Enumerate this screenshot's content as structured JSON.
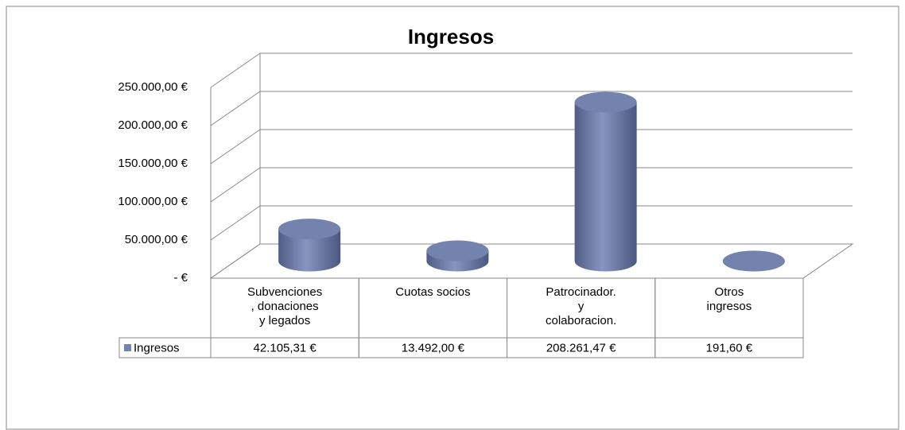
{
  "chart_data": {
    "type": "bar",
    "title": "Ingresos",
    "categories": [
      "Subvenciones\n, donaciones\ny legados",
      "Cuotas socios",
      "Patrocinador.\ny\ncolaboracion.",
      "Otros\ningresos"
    ],
    "series": [
      {
        "name": "Ingresos",
        "color": "#7383ad",
        "values": [
          42105.31,
          13492.0,
          208261.47,
          191.6
        ],
        "value_labels": [
          "42.105,31 €",
          "13.492,00 €",
          "208.261,47 €",
          "191,60 €"
        ]
      }
    ],
    "ylim": [
      0,
      250000
    ],
    "yticks": [
      {
        "value": 0,
        "label": "-  €"
      },
      {
        "value": 50000,
        "label": "50.000,00 €"
      },
      {
        "value": 100000,
        "label": "100.000,00 €"
      },
      {
        "value": 150000,
        "label": "150.000,00 €"
      },
      {
        "value": 200000,
        "label": "200.000,00 €"
      },
      {
        "value": 250000,
        "label": "250.000,00 €"
      }
    ],
    "grid": true
  }
}
